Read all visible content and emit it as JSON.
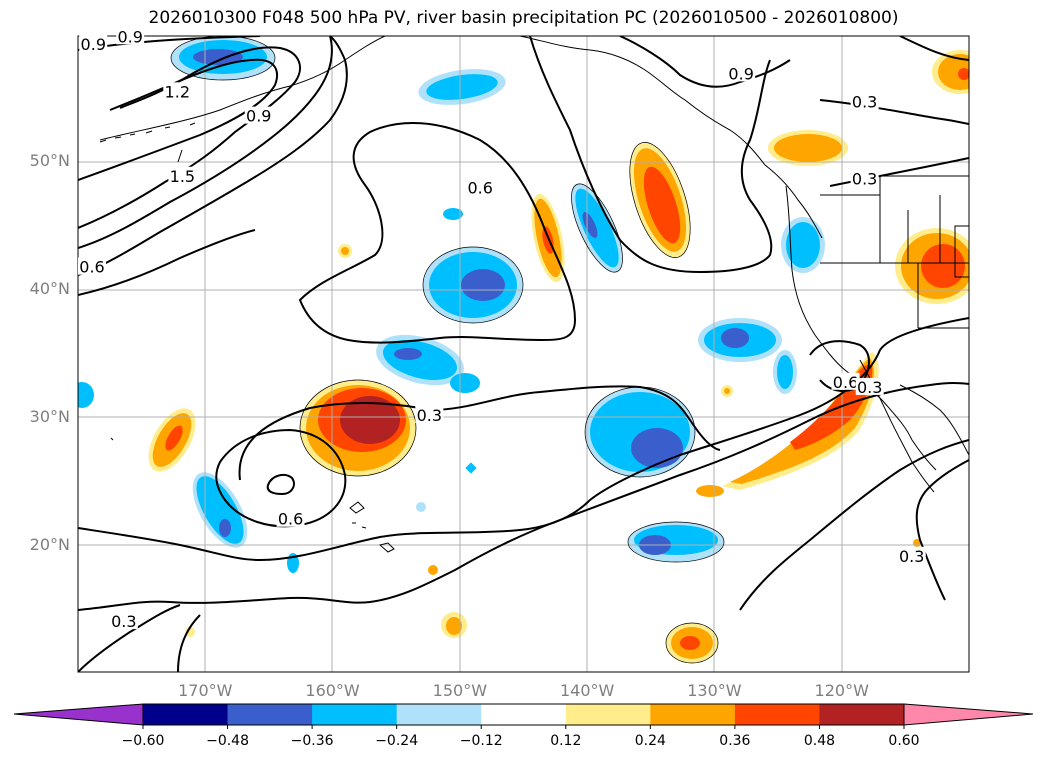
{
  "title": "2026010300 F048 500 hPa PV, river basin precipitation PC (2026010500 - 2026010800)",
  "map": {
    "lon_ticks": [
      {
        "lon": -170,
        "label": "170°W"
      },
      {
        "lon": -160,
        "label": "160°W"
      },
      {
        "lon": -150,
        "label": "150°W"
      },
      {
        "lon": -140,
        "label": "140°W"
      },
      {
        "lon": -130,
        "label": "130°W"
      },
      {
        "lon": -120,
        "label": "120°W"
      }
    ],
    "lat_ticks": [
      {
        "lat": 20,
        "label": "20°N"
      },
      {
        "lat": 30,
        "label": "30°N"
      },
      {
        "lat": 40,
        "label": "40°N"
      },
      {
        "lat": 50,
        "label": "50°N"
      }
    ],
    "extent": {
      "lon_min": -180,
      "lon_max": -110,
      "lat_min": 10,
      "lat_max": 59.7
    },
    "gridlines": true,
    "contour_labels": [
      {
        "text": "0.9",
        "lon": -178.8,
        "lat": 59.0
      },
      {
        "text": "0.9",
        "lon": -175.9,
        "lat": 59.6
      },
      {
        "text": "1.2",
        "lon": -172.2,
        "lat": 55.3
      },
      {
        "text": "0.9",
        "lon": -165.8,
        "lat": 53.4
      },
      {
        "text": "1.5",
        "lon": -171.8,
        "lat": 48.7
      },
      {
        "text": "0.6",
        "lon": -178.9,
        "lat": 41.6
      },
      {
        "text": "0.6",
        "lon": -148.4,
        "lat": 47.8
      },
      {
        "text": "0.9",
        "lon": -127.9,
        "lat": 56.7
      },
      {
        "text": "0.3",
        "lon": -118.2,
        "lat": 54.5
      },
      {
        "text": "0.3",
        "lon": -118.2,
        "lat": 48.5
      },
      {
        "text": "0.3",
        "lon": -152.4,
        "lat": 30.0
      },
      {
        "text": "0.6",
        "lon": -163.3,
        "lat": 21.9
      },
      {
        "text": "0.3",
        "lon": -176.4,
        "lat": 13.9
      },
      {
        "text": "0.6",
        "lon": -119.7,
        "lat": 32.6
      },
      {
        "text": "0.3",
        "lon": -117.8,
        "lat": 32.2
      },
      {
        "text": "0.3",
        "lon": -114.5,
        "lat": 19.0
      }
    ]
  },
  "colorbar": {
    "ticks": [
      "−0.60",
      "−0.48",
      "−0.36",
      "−0.24",
      "−0.12",
      "0.12",
      "0.24",
      "0.36",
      "0.48",
      "0.60"
    ],
    "under_color": "#9932cc",
    "over_color": "#ff88aa",
    "colors": [
      "#00008b",
      "#3a5fcd",
      "#00bfff",
      "#afe2fa",
      "#ffffff",
      "#ffec8b",
      "#ffa500",
      "#ff4500",
      "#b22222"
    ]
  },
  "palette": {
    "pos_1": "#ffec8b",
    "pos_2": "#ffa500",
    "pos_3": "#ff4500",
    "pos_4": "#b22222",
    "neg_1": "#afe2fa",
    "neg_2": "#00bfff",
    "neg_3": "#3a5fcd"
  }
}
